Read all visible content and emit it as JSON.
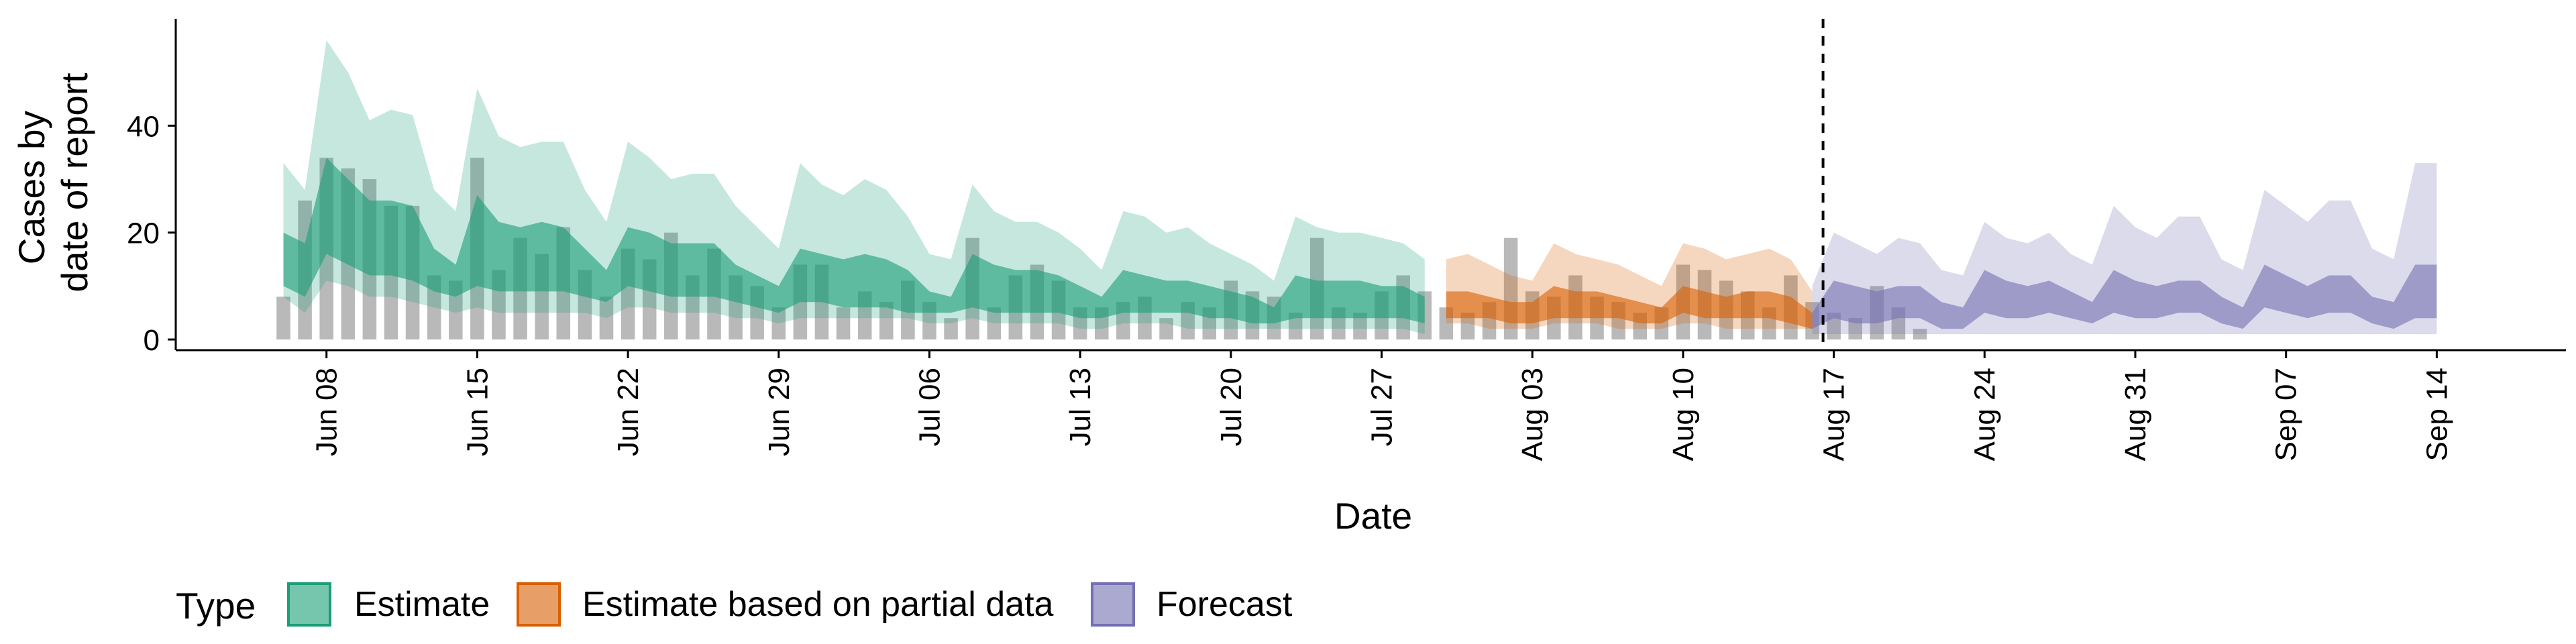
{
  "chart_data": {
    "type": "area",
    "title": "",
    "xlabel": "Date",
    "ylabel_lines": [
      "Cases by",
      "date of report"
    ],
    "ylim": [
      -2,
      60
    ],
    "yticks": [
      0,
      20,
      40
    ],
    "x_range": [
      "2020-06-01",
      "2020-09-20"
    ],
    "xticks": [
      {
        "date": "2020-06-08",
        "label": "Jun 08"
      },
      {
        "date": "2020-06-15",
        "label": "Jun 15"
      },
      {
        "date": "2020-06-22",
        "label": "Jun 22"
      },
      {
        "date": "2020-06-29",
        "label": "Jun 29"
      },
      {
        "date": "2020-07-06",
        "label": "Jul 06"
      },
      {
        "date": "2020-07-13",
        "label": "Jul 13"
      },
      {
        "date": "2020-07-20",
        "label": "Jul 20"
      },
      {
        "date": "2020-07-27",
        "label": "Jul 27"
      },
      {
        "date": "2020-08-03",
        "label": "Aug 03"
      },
      {
        "date": "2020-08-10",
        "label": "Aug 10"
      },
      {
        "date": "2020-08-17",
        "label": "Aug 17"
      },
      {
        "date": "2020-08-24",
        "label": "Aug 24"
      },
      {
        "date": "2020-08-31",
        "label": "Aug 31"
      },
      {
        "date": "2020-09-07",
        "label": "Sep 07"
      },
      {
        "date": "2020-09-14",
        "label": "Sep 14"
      }
    ],
    "forecast_start": "2020-08-16",
    "legend": {
      "position": "bottom",
      "title": "Type",
      "entries": [
        {
          "name": "Estimate",
          "fill": "#1b9e77",
          "stroke": "#1b9e77"
        },
        {
          "name": "Estimate based on partial data",
          "fill": "#d95f02",
          "stroke": "#d95f02"
        },
        {
          "name": "Forecast",
          "fill": "#7570b3",
          "stroke": "#7570b3"
        }
      ]
    },
    "bar_color": "#a8a8a8",
    "observed_cases": {
      "start_date": "2020-06-06",
      "values": [
        8,
        26,
        34,
        32,
        30,
        25,
        25,
        12,
        11,
        34,
        13,
        19,
        16,
        21,
        13,
        8,
        17,
        15,
        20,
        12,
        17,
        12,
        10,
        6,
        14,
        14,
        6,
        9,
        7,
        11,
        7,
        4,
        19,
        6,
        12,
        14,
        11,
        6,
        6,
        7,
        8,
        4,
        7,
        6,
        11,
        9,
        8,
        5,
        19,
        6,
        5,
        9,
        12,
        9,
        6,
        5,
        7,
        19,
        9,
        8,
        12,
        8,
        7,
        5,
        6,
        14,
        13,
        11,
        9,
        6,
        12,
        7,
        5,
        4,
        10,
        6,
        2
      ]
    },
    "series": [
      {
        "name": "Estimate",
        "start_date": "2020-06-06",
        "end_date": "2020-07-29",
        "outer": [
          [
            8,
            33
          ],
          [
            5,
            28
          ],
          [
            11,
            56
          ],
          [
            10,
            50
          ],
          [
            8,
            41
          ],
          [
            8,
            43
          ],
          [
            7,
            42
          ],
          [
            6,
            28
          ],
          [
            5,
            24
          ],
          [
            6,
            47
          ],
          [
            5,
            38
          ],
          [
            5,
            36
          ],
          [
            5,
            37
          ],
          [
            5,
            37
          ],
          [
            5,
            28
          ],
          [
            4,
            22
          ],
          [
            6,
            37
          ],
          [
            6,
            34
          ],
          [
            5,
            30
          ],
          [
            5,
            31
          ],
          [
            5,
            31
          ],
          [
            4,
            25
          ],
          [
            4,
            21
          ],
          [
            3,
            17
          ],
          [
            4,
            33
          ],
          [
            4,
            29
          ],
          [
            4,
            27
          ],
          [
            4,
            30
          ],
          [
            4,
            28
          ],
          [
            4,
            23
          ],
          [
            3,
            16
          ],
          [
            3,
            15
          ],
          [
            4,
            29
          ],
          [
            3,
            24
          ],
          [
            3,
            22
          ],
          [
            3,
            22
          ],
          [
            3,
            20
          ],
          [
            2,
            17
          ],
          [
            2,
            13
          ],
          [
            3,
            24
          ],
          [
            3,
            23
          ],
          [
            3,
            20
          ],
          [
            2,
            21
          ],
          [
            2,
            18
          ],
          [
            2,
            16
          ],
          [
            2,
            14
          ],
          [
            2,
            11
          ],
          [
            2,
            23
          ],
          [
            2,
            21
          ],
          [
            2,
            20
          ],
          [
            2,
            20
          ],
          [
            2,
            19
          ],
          [
            2,
            18
          ],
          [
            1,
            15
          ]
        ],
        "inner": [
          [
            10,
            20
          ],
          [
            8,
            18
          ],
          [
            16,
            34
          ],
          [
            14,
            30
          ],
          [
            12,
            26
          ],
          [
            12,
            26
          ],
          [
            11,
            25
          ],
          [
            9,
            17
          ],
          [
            8,
            14
          ],
          [
            10,
            27
          ],
          [
            9,
            22
          ],
          [
            9,
            21
          ],
          [
            9,
            22
          ],
          [
            9,
            21
          ],
          [
            8,
            17
          ],
          [
            7,
            13
          ],
          [
            10,
            21
          ],
          [
            9,
            20
          ],
          [
            8,
            18
          ],
          [
            8,
            18
          ],
          [
            8,
            18
          ],
          [
            7,
            14
          ],
          [
            6,
            12
          ],
          [
            5,
            10
          ],
          [
            7,
            17
          ],
          [
            7,
            16
          ],
          [
            6,
            15
          ],
          [
            6,
            16
          ],
          [
            6,
            15
          ],
          [
            5,
            13
          ],
          [
            5,
            9
          ],
          [
            5,
            8
          ],
          [
            6,
            16
          ],
          [
            5,
            14
          ],
          [
            5,
            13
          ],
          [
            5,
            13
          ],
          [
            5,
            12
          ],
          [
            4,
            10
          ],
          [
            4,
            8
          ],
          [
            5,
            13
          ],
          [
            5,
            12
          ],
          [
            5,
            11
          ],
          [
            5,
            11
          ],
          [
            4,
            10
          ],
          [
            4,
            9
          ],
          [
            3,
            8
          ],
          [
            3,
            6
          ],
          [
            4,
            12
          ],
          [
            4,
            11
          ],
          [
            4,
            11
          ],
          [
            4,
            11
          ],
          [
            4,
            10
          ],
          [
            4,
            10
          ],
          [
            3,
            8
          ]
        ]
      },
      {
        "name": "Estimate based on partial data",
        "start_date": "2020-07-30",
        "end_date": "2020-08-16",
        "outer": [
          [
            3,
            15
          ],
          [
            3,
            16
          ],
          [
            2,
            14
          ],
          [
            2,
            12
          ],
          [
            2,
            11
          ],
          [
            3,
            18
          ],
          [
            3,
            16
          ],
          [
            3,
            15
          ],
          [
            2,
            14
          ],
          [
            2,
            12
          ],
          [
            2,
            10
          ],
          [
            3,
            18
          ],
          [
            3,
            17
          ],
          [
            2,
            15
          ],
          [
            2,
            16
          ],
          [
            2,
            17
          ],
          [
            2,
            15
          ],
          [
            2,
            9
          ]
        ],
        "inner": [
          [
            4,
            9
          ],
          [
            4,
            9
          ],
          [
            4,
            8
          ],
          [
            3,
            7
          ],
          [
            3,
            7
          ],
          [
            4,
            10
          ],
          [
            4,
            9
          ],
          [
            4,
            9
          ],
          [
            4,
            8
          ],
          [
            3,
            7
          ],
          [
            3,
            6
          ],
          [
            5,
            10
          ],
          [
            4,
            9
          ],
          [
            4,
            8
          ],
          [
            4,
            9
          ],
          [
            4,
            9
          ],
          [
            3,
            8
          ],
          [
            2,
            5
          ]
        ]
      },
      {
        "name": "Forecast",
        "start_date": "2020-08-16",
        "end_date": "2020-09-14",
        "outer": [
          [
            1,
            10
          ],
          [
            1,
            20
          ],
          [
            1,
            18
          ],
          [
            1,
            16
          ],
          [
            1,
            19
          ],
          [
            1,
            18
          ],
          [
            1,
            13
          ],
          [
            1,
            12
          ],
          [
            1,
            22
          ],
          [
            1,
            19
          ],
          [
            1,
            18
          ],
          [
            1,
            20
          ],
          [
            1,
            16
          ],
          [
            1,
            14
          ],
          [
            1,
            25
          ],
          [
            1,
            21
          ],
          [
            1,
            19
          ],
          [
            1,
            23
          ],
          [
            1,
            23
          ],
          [
            1,
            15
          ],
          [
            1,
            13
          ],
          [
            1,
            28
          ],
          [
            1,
            25
          ],
          [
            1,
            22
          ],
          [
            1,
            26
          ],
          [
            1,
            26
          ],
          [
            1,
            17
          ],
          [
            1,
            15
          ],
          [
            1,
            33
          ],
          [
            1,
            33
          ]
        ],
        "inner": [
          [
            2,
            5
          ],
          [
            4,
            11
          ],
          [
            3,
            10
          ],
          [
            3,
            9
          ],
          [
            4,
            10
          ],
          [
            4,
            10
          ],
          [
            2,
            7
          ],
          [
            2,
            6
          ],
          [
            5,
            13
          ],
          [
            4,
            11
          ],
          [
            4,
            10
          ],
          [
            5,
            11
          ],
          [
            4,
            9
          ],
          [
            3,
            7
          ],
          [
            5,
            13
          ],
          [
            4,
            11
          ],
          [
            4,
            10
          ],
          [
            5,
            11
          ],
          [
            5,
            11
          ],
          [
            3,
            8
          ],
          [
            2,
            6
          ],
          [
            6,
            14
          ],
          [
            5,
            12
          ],
          [
            4,
            10
          ],
          [
            5,
            12
          ],
          [
            5,
            12
          ],
          [
            3,
            8
          ],
          [
            2,
            7
          ],
          [
            4,
            14
          ],
          [
            4,
            14
          ]
        ]
      }
    ]
  }
}
